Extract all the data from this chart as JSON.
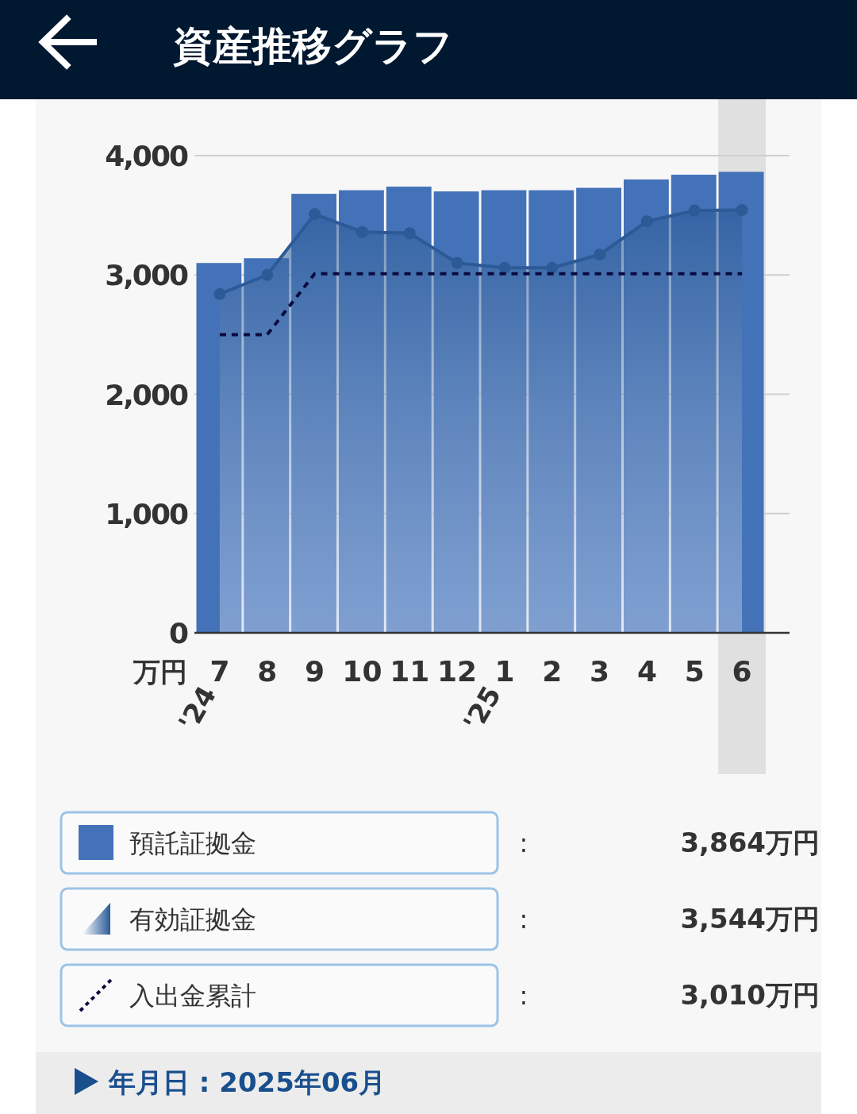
{
  "chart_data": {
    "type": "bar",
    "title": "資産推移グラフ",
    "ylabel": "万円",
    "categories": [
      "7",
      "8",
      "9",
      "10",
      "11",
      "12",
      "1",
      "2",
      "3",
      "4",
      "5",
      "6"
    ],
    "series": [
      {
        "name": "預託証拠金",
        "color": "#4372b8",
        "values": [
          3100,
          3140,
          3680,
          3710,
          3740,
          3700,
          3710,
          3710,
          3730,
          3800,
          3840,
          3864
        ]
      },
      {
        "name": "有効証拠金",
        "type": "area",
        "color": "#2b5a97",
        "marker": "circle",
        "values": [
          2840,
          3000,
          3510,
          3360,
          3350,
          3100,
          3060,
          3060,
          3170,
          3450,
          3540,
          3544
        ]
      },
      {
        "name": "入出金累計",
        "type": "line",
        "color": "#0b0b40",
        "line_style": "dotted",
        "values": [
          2500,
          2500,
          3010,
          3010,
          3010,
          3010,
          3010,
          3010,
          3010,
          3010,
          3010,
          3010
        ]
      }
    ],
    "ylim": [
      0,
      4000
    ],
    "yticks": [
      {
        "value": 0,
        "label": "0"
      },
      {
        "value": 1000,
        "label": "1,000"
      },
      {
        "value": 2000,
        "label": "2,000"
      },
      {
        "value": 3000,
        "label": "3,000"
      },
      {
        "value": 4000,
        "label": "4,000"
      }
    ],
    "grid": "y",
    "legend": "bottom",
    "bands": [
      {
        "axis": "x",
        "from": "6",
        "to": "6",
        "color": "#e0e0e0"
      }
    ],
    "annotations": [
      "'24",
      "'25",
      ":",
      "3,864万円",
      ":",
      "3,544万円",
      ":",
      "3,010万円",
      "年月日 : 2025年06月"
    ]
  }
}
